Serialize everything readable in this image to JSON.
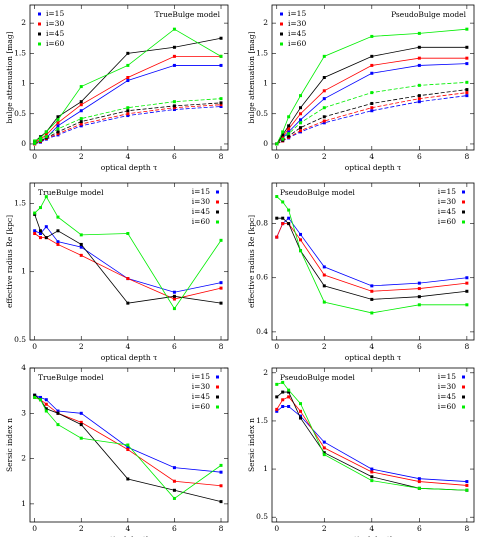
{
  "chart_data": [
    {
      "type": "line",
      "title": "TrueBulge model",
      "xlabel": "optical depth τ",
      "ylabel": "bulge attenuation [mag]",
      "x": [
        0,
        0.25,
        0.5,
        1,
        2,
        4,
        6,
        8
      ],
      "xlim": [
        -0.2,
        8.3
      ],
      "xticks": [
        0,
        2,
        4,
        6,
        8
      ],
      "ylim": [
        -0.1,
        2.3
      ],
      "yticks": [
        0,
        0.5,
        1,
        1.5,
        2
      ],
      "legend_loc": "upper left",
      "series": [
        {
          "name": "i=15",
          "color": "#0000ff",
          "values": [
            0.02,
            0.05,
            0.1,
            0.3,
            0.55,
            1.05,
            1.3,
            1.3
          ]
        },
        {
          "name": "i=30",
          "color": "#ff0000",
          "values": [
            0.03,
            0.08,
            0.15,
            0.35,
            0.65,
            1.1,
            1.45,
            1.45
          ]
        },
        {
          "name": "i=45",
          "color": "#000000",
          "values": [
            0.04,
            0.12,
            0.2,
            0.45,
            0.7,
            1.5,
            1.6,
            1.75
          ]
        },
        {
          "name": "i=60",
          "color": "#00ee00",
          "values": [
            0.05,
            0.1,
            0.2,
            0.4,
            0.95,
            1.3,
            1.9,
            1.45
          ]
        },
        {
          "color": "#0000ff",
          "dash": true,
          "values": [
            0,
            0.03,
            0.08,
            0.15,
            0.3,
            0.47,
            0.57,
            0.62
          ]
        },
        {
          "color": "#ff0000",
          "dash": true,
          "values": [
            0,
            0.04,
            0.09,
            0.17,
            0.33,
            0.5,
            0.6,
            0.65
          ]
        },
        {
          "color": "#000000",
          "dash": true,
          "values": [
            0.01,
            0.05,
            0.1,
            0.2,
            0.37,
            0.55,
            0.63,
            0.68
          ]
        },
        {
          "color": "#00ee00",
          "dash": true,
          "values": [
            0.01,
            0.06,
            0.12,
            0.25,
            0.42,
            0.6,
            0.7,
            0.75
          ]
        }
      ]
    },
    {
      "type": "line",
      "title": "PseudoBulge model",
      "xlabel": "optical depth τ",
      "ylabel": "bulge attenuation [mag]",
      "x": [
        0,
        0.25,
        0.5,
        1,
        2,
        4,
        6,
        8
      ],
      "xlim": [
        -0.2,
        8.3
      ],
      "xticks": [
        0,
        2,
        4,
        6,
        8
      ],
      "ylim": [
        -0.1,
        2.3
      ],
      "yticks": [
        0,
        0.5,
        1,
        1.5,
        2
      ],
      "legend_loc": "upper left",
      "series": [
        {
          "name": "i=15",
          "color": "#0000ff",
          "values": [
            0,
            0.1,
            0.2,
            0.4,
            0.75,
            1.17,
            1.3,
            1.33
          ]
        },
        {
          "name": "i=30",
          "color": "#ff0000",
          "values": [
            0,
            0.12,
            0.25,
            0.5,
            0.88,
            1.3,
            1.42,
            1.42
          ]
        },
        {
          "name": "i=45",
          "color": "#000000",
          "values": [
            0,
            0.15,
            0.3,
            0.6,
            1.1,
            1.45,
            1.6,
            1.6
          ]
        },
        {
          "name": "i=60",
          "color": "#00ee00",
          "values": [
            0,
            0.2,
            0.45,
            0.8,
            1.45,
            1.78,
            1.83,
            1.9
          ]
        },
        {
          "color": "#0000ff",
          "dash": true,
          "values": [
            0,
            0.05,
            0.1,
            0.2,
            0.35,
            0.55,
            0.7,
            0.8
          ]
        },
        {
          "color": "#ff0000",
          "dash": true,
          "values": [
            0,
            0.05,
            0.11,
            0.22,
            0.38,
            0.6,
            0.75,
            0.85
          ]
        },
        {
          "color": "#000000",
          "dash": true,
          "values": [
            0,
            0.06,
            0.13,
            0.27,
            0.45,
            0.67,
            0.8,
            0.9
          ]
        },
        {
          "color": "#00ee00",
          "dash": true,
          "values": [
            0,
            0.08,
            0.17,
            0.35,
            0.6,
            0.85,
            0.97,
            1.02
          ]
        }
      ]
    },
    {
      "type": "line",
      "title": "TrueBulge model",
      "xlabel": "optical depth τ",
      "ylabel": "effective radius Re [kpc]",
      "x": [
        0,
        0.25,
        0.5,
        1,
        2,
        4,
        6,
        8
      ],
      "xlim": [
        -0.2,
        8.3
      ],
      "xticks": [
        0,
        2,
        4,
        6,
        8
      ],
      "ylim": [
        0.5,
        1.65
      ],
      "yticks": [
        0.5,
        1,
        1.5
      ],
      "legend_loc": "upper right",
      "series": [
        {
          "name": "i=15",
          "color": "#0000ff",
          "values": [
            1.3,
            1.28,
            1.33,
            1.22,
            1.18,
            0.95,
            0.85,
            0.92
          ]
        },
        {
          "name": "i=30",
          "color": "#ff0000",
          "values": [
            1.28,
            1.25,
            1.25,
            1.2,
            1.12,
            0.95,
            0.8,
            0.88
          ]
        },
        {
          "name": "i=45",
          "color": "#000000",
          "values": [
            1.42,
            1.3,
            1.25,
            1.3,
            1.2,
            0.77,
            0.82,
            0.77
          ]
        },
        {
          "name": "i=60",
          "color": "#00ee00",
          "values": [
            1.43,
            1.47,
            1.55,
            1.4,
            1.27,
            1.28,
            0.73,
            1.23
          ]
        }
      ]
    },
    {
      "type": "line",
      "title": "PseudoBulge model",
      "xlabel": "optical depth τ",
      "ylabel": "effective radius Re [kpc]",
      "x": [
        0,
        0.25,
        0.5,
        1,
        2,
        4,
        6,
        8
      ],
      "xlim": [
        -0.2,
        8.3
      ],
      "xticks": [
        0,
        2,
        4,
        6,
        8
      ],
      "ylim": [
        0.37,
        0.95
      ],
      "yticks": [
        0.4,
        0.6,
        0.8
      ],
      "legend_loc": "upper right",
      "series": [
        {
          "name": "i=15",
          "color": "#0000ff",
          "values": [
            0.75,
            0.8,
            0.82,
            0.76,
            0.64,
            0.57,
            0.58,
            0.6
          ]
        },
        {
          "name": "i=30",
          "color": "#ff0000",
          "values": [
            0.75,
            0.8,
            0.8,
            0.74,
            0.61,
            0.55,
            0.56,
            0.58
          ]
        },
        {
          "name": "i=45",
          "color": "#000000",
          "values": [
            0.82,
            0.82,
            0.8,
            0.7,
            0.57,
            0.52,
            0.53,
            0.55
          ]
        },
        {
          "name": "i=60",
          "color": "#00ee00",
          "values": [
            0.9,
            0.88,
            0.85,
            0.7,
            0.51,
            0.47,
            0.5,
            0.5
          ]
        }
      ]
    },
    {
      "type": "line",
      "title": "TrueBulge model",
      "xlabel": "optical depth τ",
      "ylabel": "Sersic index n",
      "x": [
        0,
        0.25,
        0.5,
        1,
        2,
        4,
        6,
        8
      ],
      "xlim": [
        -0.2,
        8.3
      ],
      "xticks": [
        0,
        2,
        4,
        6,
        8
      ],
      "ylim": [
        0.6,
        4
      ],
      "yticks": [
        1,
        2,
        3,
        4
      ],
      "legend_loc": "upper right",
      "series": [
        {
          "name": "i=15",
          "color": "#0000ff",
          "values": [
            3.4,
            3.35,
            3.3,
            3.05,
            3.0,
            2.25,
            1.8,
            1.7
          ]
        },
        {
          "name": "i=30",
          "color": "#ff0000",
          "values": [
            3.35,
            3.3,
            3.2,
            3.0,
            2.8,
            2.2,
            1.5,
            1.4
          ]
        },
        {
          "name": "i=45",
          "color": "#000000",
          "values": [
            3.4,
            3.3,
            3.1,
            3.0,
            2.75,
            1.55,
            1.3,
            1.05
          ]
        },
        {
          "name": "i=60",
          "color": "#00ee00",
          "values": [
            3.35,
            3.3,
            3.05,
            2.75,
            2.45,
            2.3,
            1.12,
            1.85
          ]
        }
      ]
    },
    {
      "type": "line",
      "title": "PseudoBulge model",
      "xlabel": "optical depth τ",
      "ylabel": "Sersic index n",
      "x": [
        0,
        0.25,
        0.5,
        1,
        2,
        4,
        6,
        8
      ],
      "xlim": [
        -0.2,
        8.3
      ],
      "xticks": [
        0,
        2,
        4,
        6,
        8
      ],
      "ylim": [
        0.45,
        2.05
      ],
      "yticks": [
        0.5,
        1,
        1.5,
        2
      ],
      "legend_loc": "upper right",
      "series": [
        {
          "name": "i=15",
          "color": "#0000ff",
          "values": [
            1.6,
            1.65,
            1.65,
            1.55,
            1.28,
            1.0,
            0.9,
            0.87
          ]
        },
        {
          "name": "i=30",
          "color": "#ff0000",
          "values": [
            1.62,
            1.72,
            1.75,
            1.6,
            1.22,
            0.97,
            0.87,
            0.83
          ]
        },
        {
          "name": "i=45",
          "color": "#000000",
          "values": [
            1.75,
            1.8,
            1.8,
            1.53,
            1.17,
            0.92,
            0.8,
            0.78
          ]
        },
        {
          "name": "i=60",
          "color": "#00ee00",
          "values": [
            1.88,
            1.9,
            1.82,
            1.68,
            1.15,
            0.88,
            0.8,
            0.78
          ]
        }
      ]
    }
  ]
}
